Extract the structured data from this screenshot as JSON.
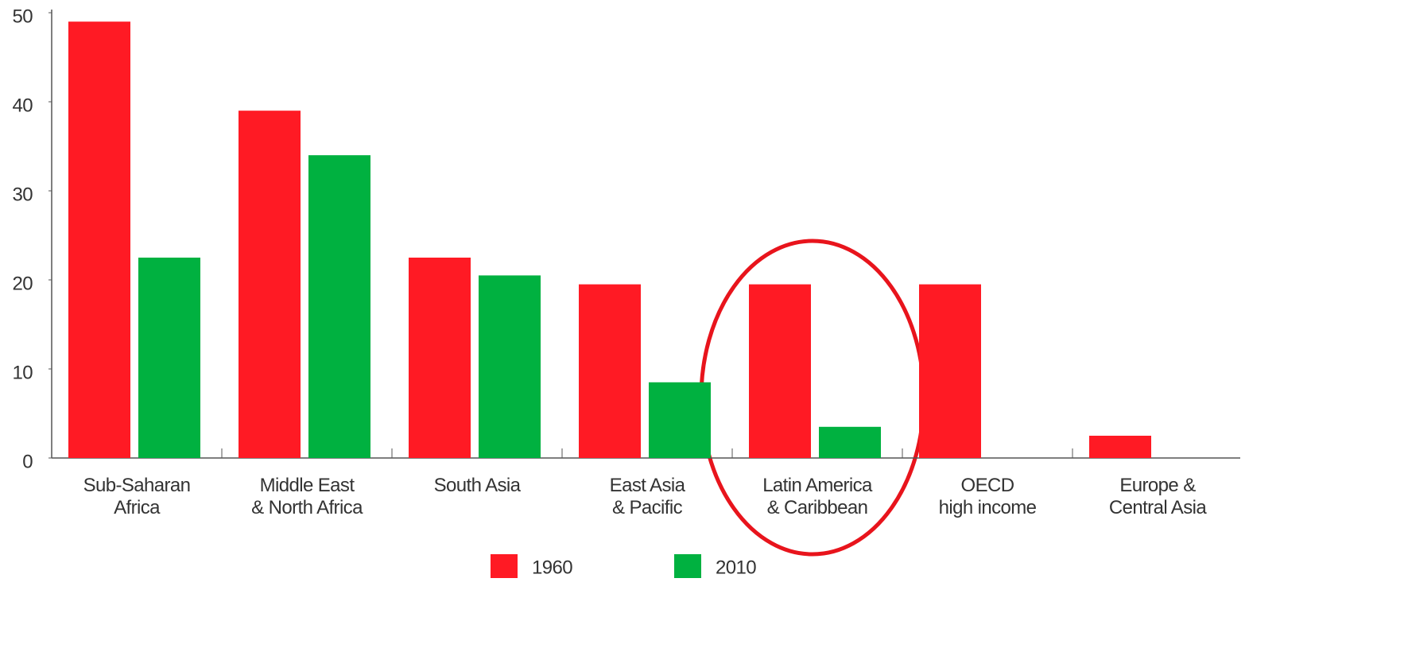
{
  "chart_data": {
    "type": "bar",
    "categories": [
      "Sub-Saharan\nAfrica",
      "Middle East\n& North Africa",
      "South Asia",
      "East Asia\n& Pacific",
      "Latin America\n& Caribbean",
      "OECD\nhigh income",
      "Europe &\nCentral Asia"
    ],
    "series": [
      {
        "name": "1960",
        "color": "#ff1a24",
        "values": [
          49,
          39,
          22.5,
          19.5,
          19.5,
          19.5,
          2.5
        ]
      },
      {
        "name": "2010",
        "color": "#00b140",
        "values": [
          22.5,
          34,
          20.5,
          8.5,
          3.5,
          0,
          0
        ]
      }
    ],
    "ylim": [
      0,
      50
    ],
    "yticks": [
      0,
      10,
      20,
      30,
      40,
      50
    ],
    "grid": false
  }
}
